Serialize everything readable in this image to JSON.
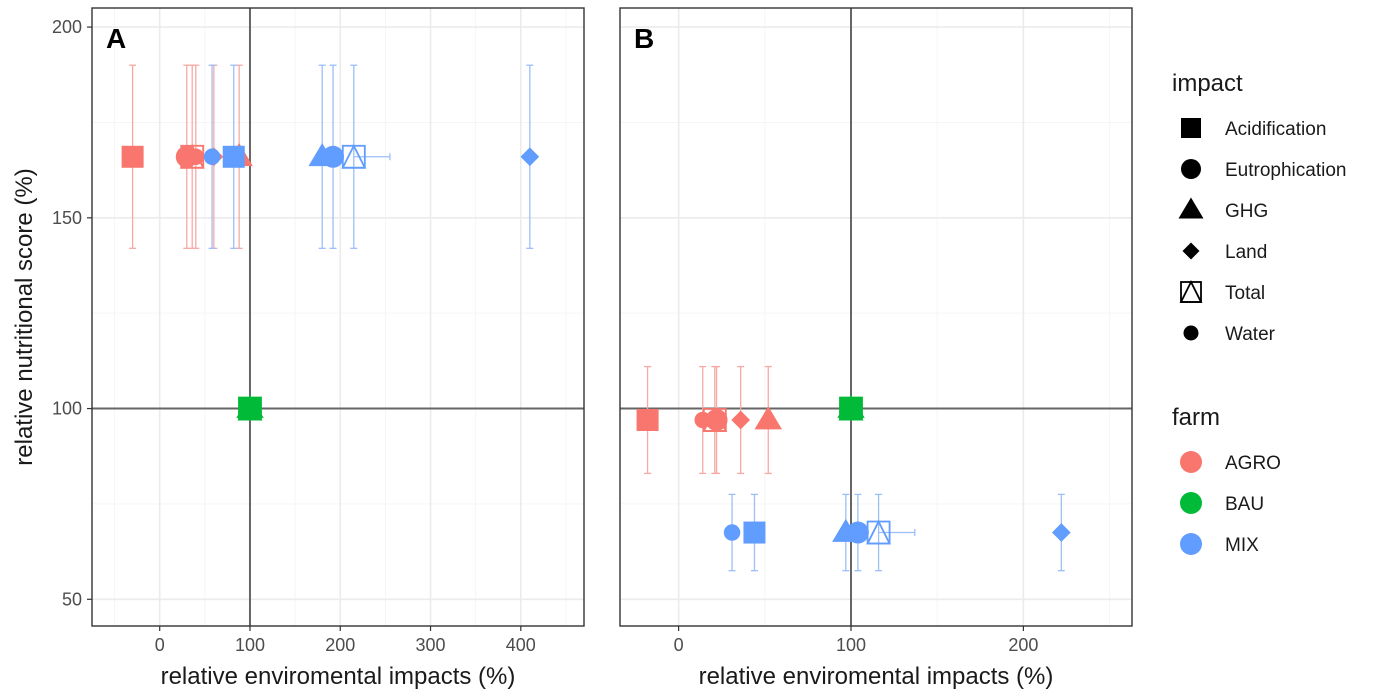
{
  "colors": {
    "AGRO": "#F8766D",
    "BAU": "#00BA38",
    "MIX": "#619CFF",
    "AGRO_light": "#F8A9A4",
    "MIX_light": "#9CBFF8",
    "grid_major": "#EBEBEB",
    "grid_minor": "#F5F5F5",
    "ref_line": "#666666",
    "legend_symbol": "#000000"
  },
  "labels": {
    "ylabel": "relative nutritional score (%)",
    "xlabel": "relative enviromental impacts (%)"
  },
  "legend": {
    "impact_title": "impact",
    "impact_items": [
      {
        "label": "Acidification",
        "shape": "square"
      },
      {
        "label": "Eutrophication",
        "shape": "circle"
      },
      {
        "label": "GHG",
        "shape": "triangle"
      },
      {
        "label": "Land",
        "shape": "diamond"
      },
      {
        "label": "Total",
        "shape": "square-triangle-open"
      },
      {
        "label": "Water",
        "shape": "small-circle"
      }
    ],
    "farm_title": "farm",
    "farm_items": [
      {
        "label": "AGRO",
        "color": "#F8766D"
      },
      {
        "label": "BAU",
        "color": "#00BA38"
      },
      {
        "label": "MIX",
        "color": "#619CFF"
      }
    ]
  },
  "chart_data": [
    {
      "type": "scatter",
      "panel": "A",
      "xlim": [
        -75,
        470
      ],
      "ylim": [
        43,
        205
      ],
      "x_ticks": [
        0,
        100,
        200,
        300,
        400
      ],
      "x_tick_labels": [
        "0",
        "100",
        "200",
        "300",
        "400"
      ],
      "y_ticks": [
        50,
        100,
        150,
        200
      ],
      "y_tick_labels": [
        "50",
        "100",
        "150",
        "200"
      ],
      "ref_lines": {
        "x": 100,
        "y": 100
      },
      "series": [
        {
          "name": "AGRO",
          "points": [
            {
              "impact": "Acidification",
              "x": -30,
              "y": 166,
              "ymin": 142,
              "ymax": 190
            },
            {
              "impact": "Eutrophication",
              "x": 30,
              "y": 166,
              "ymin": 142,
              "ymax": 190
            },
            {
              "impact": "Total",
              "x": 36,
              "y": 166,
              "ymin": 142,
              "ymax": 190
            },
            {
              "impact": "Water",
              "x": 40,
              "y": 166,
              "ymin": 142,
              "ymax": 190
            },
            {
              "impact": "Land",
              "x": 60,
              "y": 166,
              "ymin": 142,
              "ymax": 190
            },
            {
              "impact": "GHG",
              "x": 88,
              "y": 166,
              "ymin": 142,
              "ymax": 190
            }
          ]
        },
        {
          "name": "BAU",
          "points": [
            {
              "impact": "Acidification",
              "x": 100,
              "y": 100
            },
            {
              "impact": "Eutrophication",
              "x": 100,
              "y": 100
            },
            {
              "impact": "GHG",
              "x": 100,
              "y": 100
            },
            {
              "impact": "Land",
              "x": 100,
              "y": 100
            },
            {
              "impact": "Total",
              "x": 100,
              "y": 100
            },
            {
              "impact": "Water",
              "x": 100,
              "y": 100
            }
          ]
        },
        {
          "name": "MIX",
          "points": [
            {
              "impact": "Water",
              "x": 58,
              "y": 166,
              "ymin": 142,
              "ymax": 190
            },
            {
              "impact": "Acidification",
              "x": 82,
              "y": 166,
              "ymin": 142,
              "ymax": 190
            },
            {
              "impact": "GHG",
              "x": 180,
              "y": 166,
              "ymin": 142,
              "ymax": 190
            },
            {
              "impact": "Eutrophication",
              "x": 192,
              "y": 166,
              "ymin": 142,
              "ymax": 190
            },
            {
              "impact": "Total",
              "x": 215,
              "y": 166,
              "ymin": 142,
              "ymax": 190,
              "xmin": 215,
              "xmax": 255
            },
            {
              "impact": "Land",
              "x": 410,
              "y": 166,
              "ymin": 142,
              "ymax": 190
            }
          ]
        }
      ]
    },
    {
      "type": "scatter",
      "panel": "B",
      "xlim": [
        -34,
        263
      ],
      "ylim": [
        43,
        205
      ],
      "x_ticks": [
        0,
        100,
        200
      ],
      "x_tick_labels": [
        "0",
        "100",
        "200"
      ],
      "y_ticks": [
        50,
        100,
        150,
        200
      ],
      "y_tick_labels": [],
      "ref_lines": {
        "x": 100,
        "y": 100
      },
      "series": [
        {
          "name": "AGRO",
          "points": [
            {
              "impact": "Acidification",
              "x": -18,
              "y": 97,
              "ymin": 83,
              "ymax": 111
            },
            {
              "impact": "Water",
              "x": 14,
              "y": 97,
              "ymin": 83,
              "ymax": 111
            },
            {
              "impact": "Total",
              "x": 21,
              "y": 97,
              "ymin": 83,
              "ymax": 111
            },
            {
              "impact": "Eutrophication",
              "x": 22,
              "y": 97,
              "ymin": 83,
              "ymax": 111
            },
            {
              "impact": "Land",
              "x": 36,
              "y": 97,
              "ymin": 83,
              "ymax": 111
            },
            {
              "impact": "GHG",
              "x": 52,
              "y": 97,
              "ymin": 83,
              "ymax": 111
            }
          ]
        },
        {
          "name": "BAU",
          "points": [
            {
              "impact": "Acidification",
              "x": 100,
              "y": 100
            },
            {
              "impact": "Eutrophication",
              "x": 100,
              "y": 100
            },
            {
              "impact": "GHG",
              "x": 100,
              "y": 100
            },
            {
              "impact": "Land",
              "x": 100,
              "y": 100
            },
            {
              "impact": "Total",
              "x": 100,
              "y": 100
            },
            {
              "impact": "Water",
              "x": 100,
              "y": 100
            }
          ]
        },
        {
          "name": "MIX",
          "points": [
            {
              "impact": "Water",
              "x": 31,
              "y": 67.5,
              "ymin": 57.5,
              "ymax": 77.5
            },
            {
              "impact": "Acidification",
              "x": 44,
              "y": 67.5,
              "ymin": 57.5,
              "ymax": 77.5
            },
            {
              "impact": "GHG",
              "x": 97,
              "y": 67.5,
              "ymin": 57.5,
              "ymax": 77.5
            },
            {
              "impact": "Eutrophication",
              "x": 104,
              "y": 67.5,
              "ymin": 57.5,
              "ymax": 77.5
            },
            {
              "impact": "Total",
              "x": 116,
              "y": 67.5,
              "ymin": 57.5,
              "ymax": 77.5,
              "xmin": 116,
              "xmax": 137
            },
            {
              "impact": "Land",
              "x": 222,
              "y": 67.5,
              "ymin": 57.5,
              "ymax": 77.5
            }
          ]
        }
      ]
    }
  ]
}
